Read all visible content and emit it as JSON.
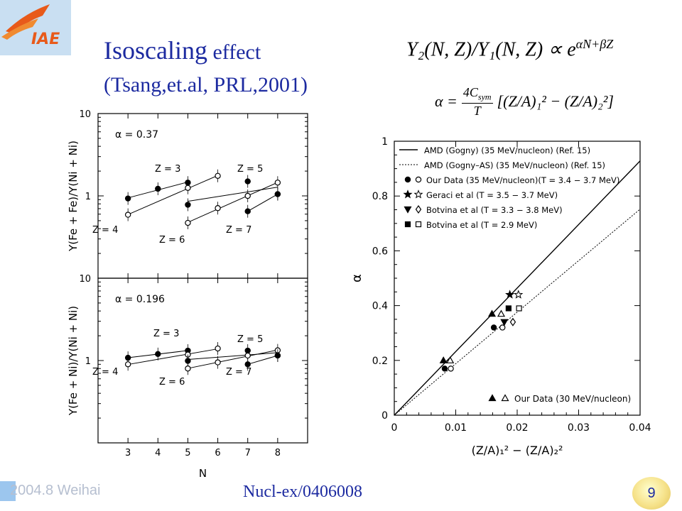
{
  "header": {
    "title_main": "Isoscaling",
    "title_rest": " effect",
    "subtitle_open": "(",
    "subtitle_authors": "Tsang,et.al, ",
    "subtitle_ref": "PRL,2001)",
    "eq1_left": "Y",
    "eq1_text": "Y₂(N, Z)/Y₁(N, Z) ∝ e",
    "eq1_exp": "αN+βZ",
    "eq2_alpha": "α =",
    "eq2_num": "4C",
    "eq2_num_sub": "sym",
    "eq2_den": "T",
    "eq2_rest": "[(Z/A)₁² − (Z/A)₂²]"
  },
  "logo": {
    "text": "IAE"
  },
  "footer": {
    "left": "2004.8 Weihai",
    "center": "Nucl-ex/0406008",
    "page": "9"
  },
  "chart_data": [
    {
      "type": "scatter",
      "panel": "upper-left",
      "ylabel": "Y(Fe + Fe)/Y(Ni + Ni)",
      "xlim": [
        2,
        9
      ],
      "ylim": [
        0.1,
        10
      ],
      "yscale": "log",
      "ytick_labels": [
        "10",
        "1"
      ],
      "annotation": "α = 0.37",
      "zlabels": [
        "Z = 3",
        "Z = 5",
        "Z = 4",
        "Z = 6",
        "Z = 7"
      ],
      "series": [
        {
          "name": "Z = 3",
          "marker": "filled-circle",
          "x": [
            3,
            4,
            5
          ],
          "y": [
            0.93,
            1.22,
            1.45
          ]
        },
        {
          "name": "Z = 4",
          "marker": "open-circle",
          "x": [
            3,
            5,
            6
          ],
          "y": [
            0.59,
            1.25,
            1.75
          ]
        },
        {
          "name": "Z = 5",
          "marker": "filled-circle",
          "x": [
            5,
            7,
            8
          ],
          "y": [
            0.78,
            1.5,
            1.05
          ]
        },
        {
          "name": "Z = 6",
          "marker": "open-circle",
          "x": [
            5,
            6,
            7,
            8
          ],
          "y": [
            0.47,
            0.71,
            1.0,
            1.45
          ]
        },
        {
          "name": "Z = 7",
          "marker": "filled-circle",
          "x": [
            7,
            8
          ],
          "y": [
            0.65,
            1.05
          ]
        }
      ]
    },
    {
      "type": "scatter",
      "panel": "lower-left",
      "ylabel": "Y(Fe + Ni)/Y(Ni + Ni)",
      "xlabel": "N",
      "xlim": [
        2,
        9
      ],
      "ylim": [
        0.1,
        10
      ],
      "yscale": "log",
      "xtick_labels": [
        "3",
        "4",
        "5",
        "6",
        "7",
        "8"
      ],
      "ytick_labels": [
        "10",
        "1"
      ],
      "annotation": "α = 0.196",
      "zlabels": [
        "Z = 3",
        "Z = 5",
        "Z = 4",
        "Z = 6",
        "Z = 7"
      ],
      "series": [
        {
          "name": "Z = 3",
          "marker": "filled-circle",
          "x": [
            3,
            4,
            5
          ],
          "y": [
            1.08,
            1.2,
            1.32
          ]
        },
        {
          "name": "Z = 4",
          "marker": "open-circle",
          "x": [
            3,
            5,
            6
          ],
          "y": [
            0.9,
            1.18,
            1.4
          ]
        },
        {
          "name": "Z = 5",
          "marker": "filled-circle",
          "x": [
            5,
            7,
            8
          ],
          "y": [
            0.99,
            1.32,
            1.15
          ]
        },
        {
          "name": "Z = 6",
          "marker": "open-circle",
          "x": [
            5,
            6,
            7,
            8
          ],
          "y": [
            0.8,
            0.95,
            1.15,
            1.33
          ]
        },
        {
          "name": "Z = 7",
          "marker": "filled-circle",
          "x": [
            7,
            8
          ],
          "y": [
            0.9,
            1.15
          ]
        }
      ]
    },
    {
      "type": "scatter",
      "panel": "right",
      "xlabel": "(Z/A)₁² − (Z/A)₂²",
      "ylabel": "α",
      "xlim": [
        0,
        0.04
      ],
      "ylim": [
        0,
        1
      ],
      "xticks": [
        0,
        0.01,
        0.02,
        0.03,
        0.04
      ],
      "xtick_labels": [
        "0",
        "0.01",
        "0.02",
        "0.03",
        "0.04"
      ],
      "yticks": [
        0,
        0.2,
        0.4,
        0.6,
        0.8,
        1
      ],
      "ytick_labels": [
        "0",
        "0.2",
        "0.4",
        "0.6",
        "0.8",
        "1"
      ],
      "legend_position": "top-left",
      "lines": [
        {
          "name": "AMD (Gogny) (35 MeV/nucleon) (Ref. 15)",
          "style": "solid",
          "slope": 23.2
        },
        {
          "name": "AMD (Gogny–AS) (35 MeV/nucleon) (Ref. 15)",
          "style": "dotted",
          "slope": 18.8
        }
      ],
      "series": [
        {
          "name": "Our Data (35 MeV/nucleon)(T = 3.4 − 3.7 MeV)",
          "marker": "circle",
          "filled": {
            "x": [
              0.0082,
              0.0162
            ],
            "y": [
              0.17,
              0.32
            ]
          },
          "open": {
            "x": [
              0.0092,
              0.0176
            ],
            "y": [
              0.17,
              0.32
            ]
          }
        },
        {
          "name": "Geraci et al (T = 3.5 − 3.7 MeV)",
          "marker": "star",
          "filled": {
            "x": [
              0.0188
            ],
            "y": [
              0.44
            ]
          },
          "open": {
            "x": [
              0.0202
            ],
            "y": [
              0.44
            ]
          }
        },
        {
          "name": "Botvina et al (T = 3.3 − 3.8 MeV)",
          "marker": "triangle-down-diamond",
          "filled": {
            "x": [
              0.0179
            ],
            "y": [
              0.34
            ]
          },
          "open": {
            "x": [
              0.0193
            ],
            "y": [
              0.34
            ]
          }
        },
        {
          "name": "Botvina et al (T = 2.9 MeV)",
          "marker": "square",
          "filled": {
            "x": [
              0.0186
            ],
            "y": [
              0.39
            ]
          },
          "open": {
            "x": [
              0.0203
            ],
            "y": [
              0.39
            ]
          }
        },
        {
          "name": "Our Data (30 MeV/nucleon)",
          "marker": "triangle",
          "filled": {
            "x": [
              0.008,
              0.0159
            ],
            "y": [
              0.2,
              0.37
            ]
          },
          "open": {
            "x": [
              0.0091,
              0.0174
            ],
            "y": [
              0.2,
              0.37
            ]
          }
        }
      ]
    }
  ]
}
